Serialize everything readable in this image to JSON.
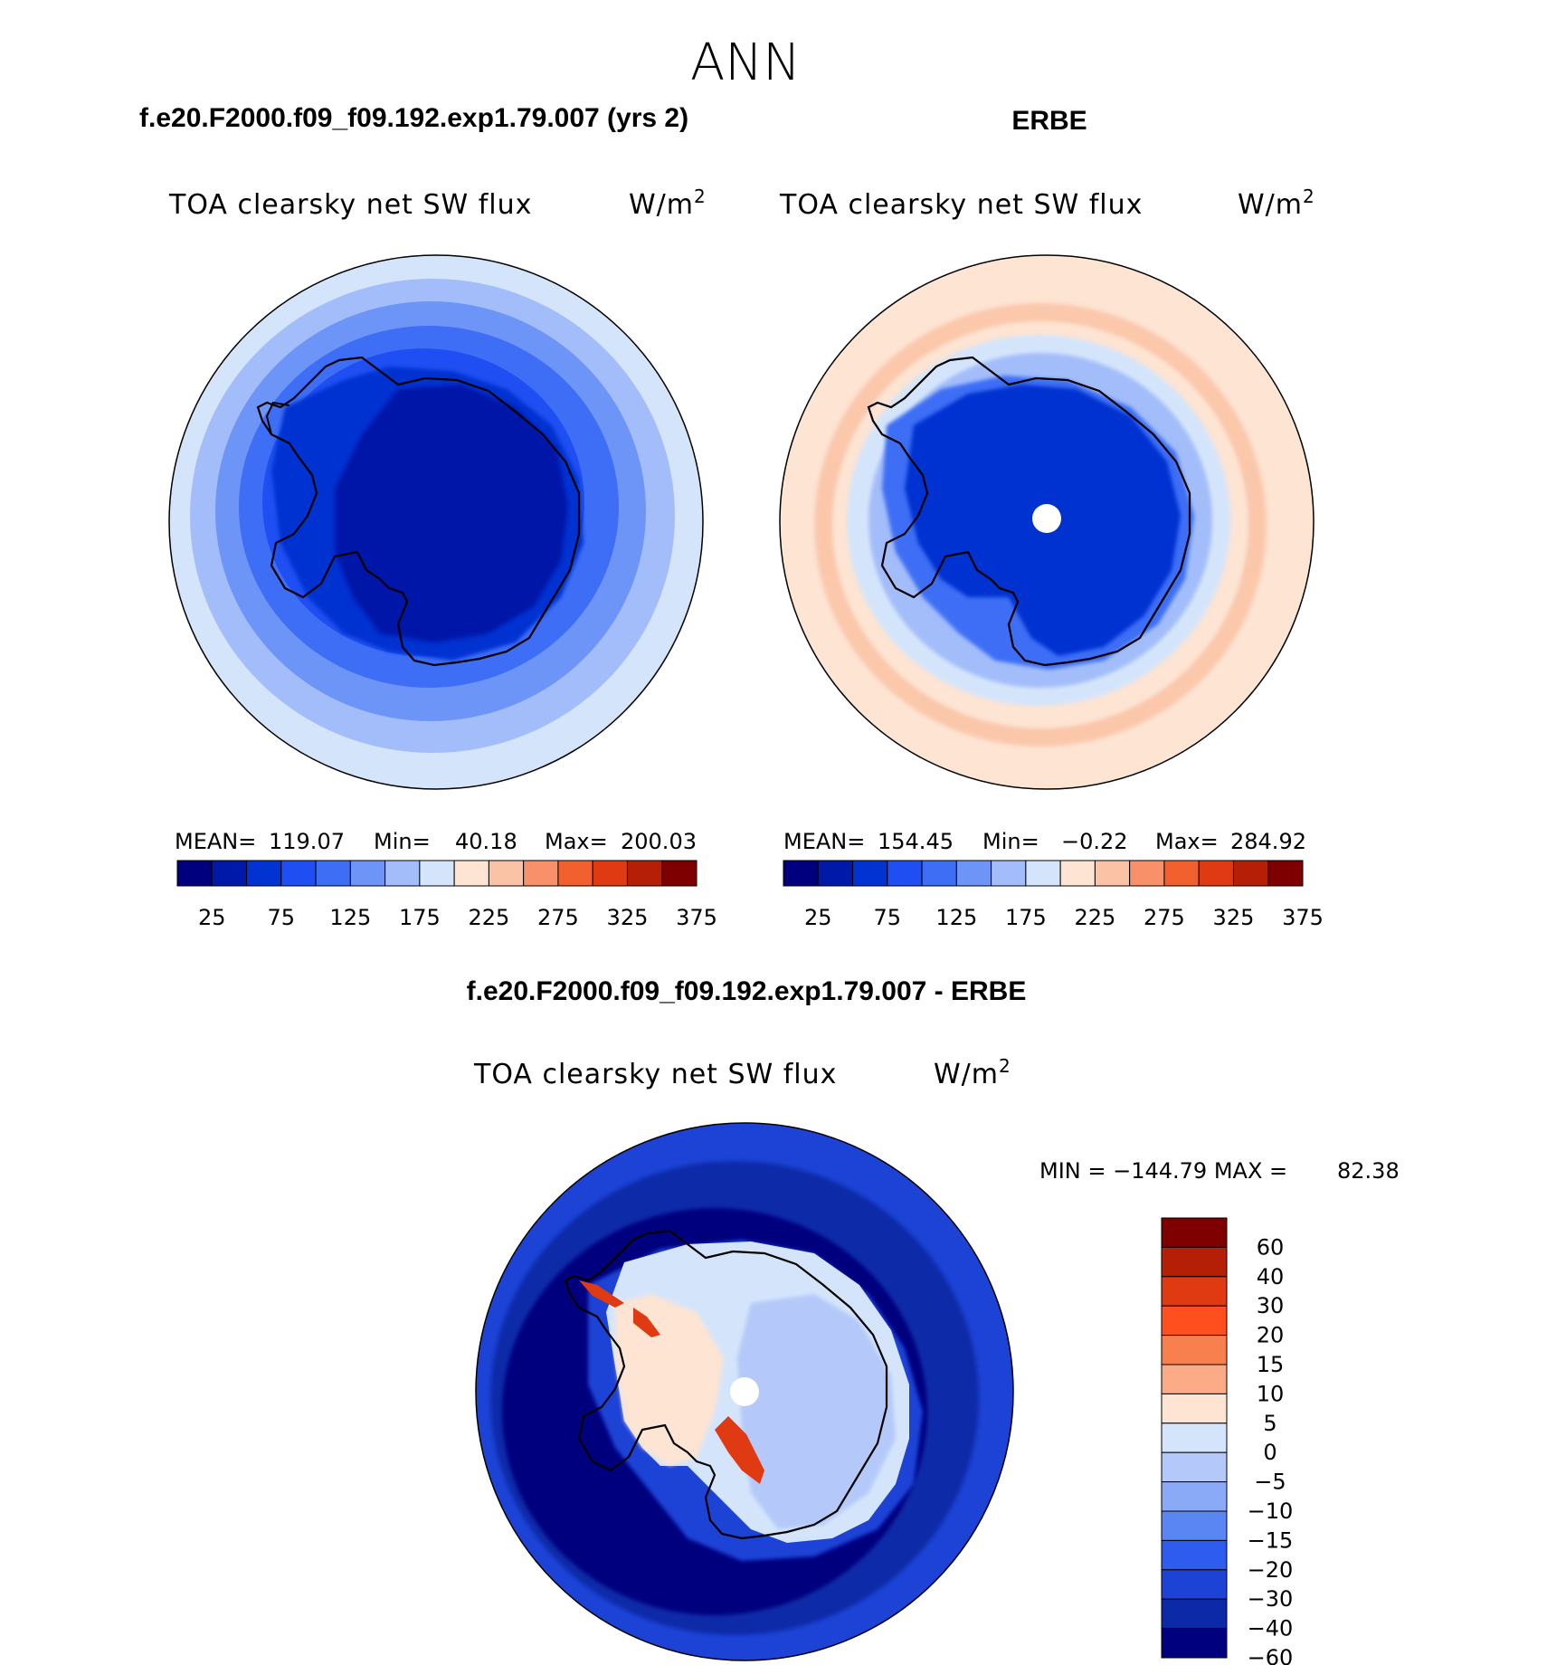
{
  "figure": {
    "title": "ANN",
    "bottom_title": "f.e20.F2000.f09_f09.192.exp1.79.007 - ERBE"
  },
  "chart_data": [
    {
      "type": "heatmap",
      "projection": "south-polar-stereographic",
      "title": "f.e20.F2000.f09_f09.192.exp1.79.007 (yrs 2)",
      "variable": "TOA clearsky net SW flux",
      "units_base": "W/m",
      "units_exp": "2",
      "stats": {
        "mean_label": "MEAN=",
        "mean": "119.07",
        "min_label": "Min=",
        "min": "40.18",
        "max_label": "Max=",
        "max": "200.03"
      },
      "levels": [
        25,
        50,
        75,
        100,
        125,
        150,
        175,
        200,
        225,
        250,
        275,
        300,
        325,
        350,
        375
      ],
      "tick_labels": [
        "25",
        "75",
        "125",
        "175",
        "225",
        "275",
        "325",
        "375"
      ],
      "colors": [
        "#00007f",
        "#0019a8",
        "#0033d1",
        "#1f4ff2",
        "#3d6ef5",
        "#6d95f7",
        "#a3bdfa",
        "#d4e5fb",
        "#fde4d3",
        "#fbc3a5",
        "#f8916a",
        "#f2602f",
        "#e03a12",
        "#b41f05",
        "#7f0000"
      ]
    },
    {
      "type": "heatmap",
      "projection": "south-polar-stereographic",
      "title": "ERBE",
      "variable": "TOA clearsky net SW flux",
      "units_base": "W/m",
      "units_exp": "2",
      "stats": {
        "mean_label": "MEAN=",
        "mean": "154.45",
        "min_label": "Min=",
        "min": "−0.22",
        "max_label": "Max=",
        "max": "284.92"
      },
      "levels": [
        25,
        50,
        75,
        100,
        125,
        150,
        175,
        200,
        225,
        250,
        275,
        300,
        325,
        350,
        375
      ],
      "tick_labels": [
        "25",
        "75",
        "125",
        "175",
        "225",
        "275",
        "325",
        "375"
      ],
      "colors": [
        "#00007f",
        "#0019a8",
        "#0033d1",
        "#1f4ff2",
        "#3d6ef5",
        "#6d95f7",
        "#a3bdfa",
        "#d4e5fb",
        "#fde4d3",
        "#fbc3a5",
        "#f8916a",
        "#f2602f",
        "#e03a12",
        "#b41f05",
        "#7f0000"
      ]
    },
    {
      "type": "heatmap",
      "projection": "south-polar-stereographic",
      "title": "f.e20.F2000.f09_f09.192.exp1.79.007 - ERBE",
      "variable": "TOA clearsky net SW flux",
      "units_base": "W/m",
      "units_exp": "2",
      "stats": {
        "minmax_label": "MIN = −144.79 MAX =",
        "max": "82.38"
      },
      "levels": [
        -60,
        -40,
        -30,
        -20,
        -15,
        -10,
        -5,
        0,
        5,
        10,
        15,
        20,
        30,
        40,
        60
      ],
      "tick_labels": [
        "60",
        "40",
        "30",
        "20",
        "15",
        "10",
        "5",
        "0",
        "−5",
        "−10",
        "−15",
        "−20",
        "−30",
        "−40",
        "−60"
      ],
      "colors": [
        "#7f0000",
        "#b41f05",
        "#e03a12",
        "#ff4f1f",
        "#f8804f",
        "#fbab85",
        "#fde4d3",
        "#d4e5fb",
        "#b4c9f9",
        "#8aaaf7",
        "#5a86f3",
        "#2e5cef",
        "#1c43d6",
        "#0c2aa8",
        "#00007f"
      ]
    }
  ]
}
